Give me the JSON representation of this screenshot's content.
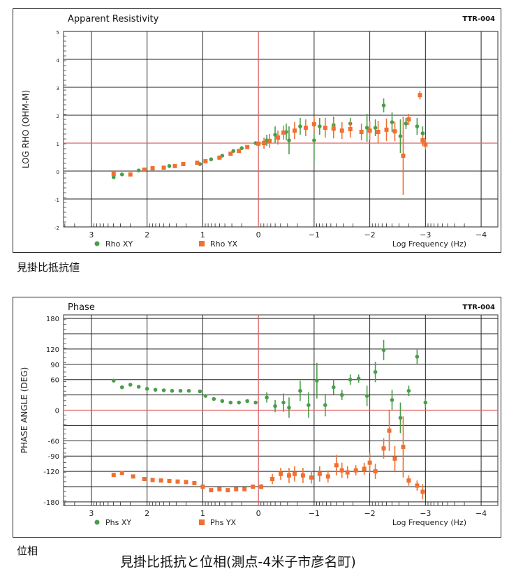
{
  "chart_data": [
    {
      "type": "scatter",
      "title": "Apparent Resistivity",
      "id_label": "TTR-004",
      "ylabel": "LOG RHO (OHM-M)",
      "xlabel": "Log Frequency (Hz)",
      "xlim": [
        3.5,
        -4.3
      ],
      "ylim": [
        -2,
        5
      ],
      "x_ticks": [
        3,
        2,
        1,
        0,
        -1,
        -2,
        -3,
        -4
      ],
      "x_tick_labels": [
        "3",
        "2",
        "1",
        "0",
        "−1",
        "−2",
        "−3",
        "−4"
      ],
      "y_ticks": [
        -2,
        -1,
        0,
        1,
        2,
        3,
        4,
        5
      ],
      "y_tick_labels": [
        "-2",
        "-1",
        "0",
        "1",
        "2",
        "3",
        "4",
        "5"
      ],
      "ref_lines": {
        "x": 0,
        "y": 1
      },
      "grid": true,
      "legend": "bottom-left",
      "colors": {
        "xy": "#4a9d4a",
        "yx": "#f07030",
        "ref": "#e06060"
      },
      "series": [
        {
          "name": "Rho XY",
          "marker": "circle",
          "points": [
            [
              2.6,
              -0.22,
              0.05
            ],
            [
              2.45,
              -0.12,
              0
            ],
            [
              2.15,
              0.02,
              0
            ],
            [
              1.6,
              0.18,
              0
            ],
            [
              1.05,
              0.25,
              0
            ],
            [
              0.85,
              0.42,
              0
            ],
            [
              0.65,
              0.55,
              0
            ],
            [
              0.45,
              0.72,
              0
            ],
            [
              0.3,
              0.82,
              0
            ],
            [
              0.05,
              1.0,
              0.05
            ],
            [
              -0.15,
              1.1,
              0.2
            ],
            [
              -0.3,
              1.3,
              0.3
            ],
            [
              -0.5,
              1.4,
              0.3
            ],
            [
              -0.55,
              1.1,
              0.5
            ],
            [
              -0.75,
              1.6,
              0.3
            ],
            [
              -1.0,
              1.1,
              0.8
            ],
            [
              -1.1,
              1.6,
              0.3
            ],
            [
              -1.35,
              1.65,
              0.3
            ],
            [
              -1.65,
              1.7,
              0.2
            ],
            [
              -1.95,
              1.55,
              0.5
            ],
            [
              -2.1,
              1.55,
              0.3
            ],
            [
              -2.25,
              2.35,
              0.25
            ],
            [
              -2.4,
              1.75,
              0.35
            ],
            [
              -2.55,
              1.25,
              0.6
            ],
            [
              -2.65,
              1.7,
              0.2
            ],
            [
              -2.85,
              1.6,
              0.3
            ],
            [
              -2.95,
              1.35,
              0.25
            ]
          ]
        },
        {
          "name": "Rho YX",
          "marker": "square",
          "points": [
            [
              2.6,
              -0.1,
              0.08
            ],
            [
              2.3,
              -0.12,
              0
            ],
            [
              2.05,
              0.05,
              0
            ],
            [
              1.9,
              0.1,
              0
            ],
            [
              1.7,
              0.12,
              0
            ],
            [
              1.5,
              0.18,
              0
            ],
            [
              1.35,
              0.25,
              0
            ],
            [
              1.1,
              0.3,
              0
            ],
            [
              0.95,
              0.35,
              0
            ],
            [
              0.7,
              0.48,
              0
            ],
            [
              0.5,
              0.62,
              0
            ],
            [
              0.35,
              0.72,
              0
            ],
            [
              0.2,
              0.86,
              0
            ],
            [
              0.0,
              0.98,
              0.05
            ],
            [
              -0.1,
              1.0,
              0.2
            ],
            [
              -0.2,
              1.08,
              0.25
            ],
            [
              -0.35,
              1.2,
              0.25
            ],
            [
              -0.45,
              1.38,
              0.25
            ],
            [
              -0.65,
              1.45,
              0.3
            ],
            [
              -0.85,
              1.55,
              0.3
            ],
            [
              -1.0,
              1.68,
              0.3
            ],
            [
              -1.2,
              1.55,
              0.35
            ],
            [
              -1.35,
              1.52,
              0.35
            ],
            [
              -1.5,
              1.45,
              0.3
            ],
            [
              -1.65,
              1.5,
              0.3
            ],
            [
              -1.85,
              1.4,
              0.3
            ],
            [
              -2.0,
              1.45,
              0.35
            ],
            [
              -2.15,
              1.4,
              0.4
            ],
            [
              -2.3,
              1.48,
              0.4
            ],
            [
              -2.45,
              1.42,
              0.35
            ],
            [
              -2.6,
              0.55,
              1.4
            ],
            [
              -2.7,
              1.85,
              0.2
            ],
            [
              -2.9,
              2.72,
              0.15
            ],
            [
              -2.95,
              1.1,
              0.2
            ],
            [
              -3.0,
              0.95,
              0.2
            ]
          ]
        }
      ]
    },
    {
      "type": "scatter",
      "title": "Phase",
      "id_label": "TTR-004",
      "ylabel": "PHASE ANGLE (DEG)",
      "xlabel": "Log Frequency (Hz)",
      "xlim": [
        3.5,
        -4.3
      ],
      "ylim": [
        -187,
        187
      ],
      "x_ticks": [
        3,
        2,
        1,
        0,
        -1,
        -2,
        -3,
        -4
      ],
      "x_tick_labels": [
        "3",
        "2",
        "1",
        "0",
        "−1",
        "−2",
        "−3",
        "−4"
      ],
      "y_ticks": [
        180,
        120,
        90,
        60,
        0,
        -60,
        -90,
        -120,
        -180
      ],
      "y_tick_labels": [
        "180",
        "120",
        "90",
        "60",
        "0",
        "-60",
        "-90",
        "-120",
        "-180"
      ],
      "grid_y": [
        180,
        150,
        120,
        90,
        60,
        30,
        0,
        -30,
        -60,
        -90,
        -120,
        -150,
        -180
      ],
      "ref_lines": {
        "x": 0,
        "y": 0
      },
      "grid": true,
      "legend": "bottom-left",
      "colors": {
        "xy": "#4a9d4a",
        "yx": "#f07030",
        "ref": "#e06060"
      },
      "series": [
        {
          "name": "Phs XY",
          "marker": "circle",
          "points": [
            [
              2.6,
              58,
              2
            ],
            [
              2.45,
              45,
              0
            ],
            [
              2.3,
              50,
              0
            ],
            [
              2.15,
              46,
              0
            ],
            [
              2.0,
              42,
              0
            ],
            [
              1.85,
              40,
              0
            ],
            [
              1.7,
              39,
              0
            ],
            [
              1.55,
              38,
              0
            ],
            [
              1.4,
              38,
              0
            ],
            [
              1.25,
              38,
              0
            ],
            [
              1.05,
              37,
              0
            ],
            [
              0.95,
              28,
              0
            ],
            [
              0.8,
              22,
              0
            ],
            [
              0.65,
              18,
              0
            ],
            [
              0.5,
              15,
              0
            ],
            [
              0.35,
              15,
              0
            ],
            [
              0.2,
              18,
              0
            ],
            [
              0.05,
              15,
              0
            ],
            [
              -0.15,
              25,
              10
            ],
            [
              -0.3,
              8,
              12
            ],
            [
              -0.45,
              15,
              18
            ],
            [
              -0.55,
              5,
              20
            ],
            [
              -0.75,
              38,
              20
            ],
            [
              -0.9,
              10,
              25
            ],
            [
              -1.05,
              58,
              35
            ],
            [
              -1.2,
              10,
              22
            ],
            [
              -1.35,
              45,
              15
            ],
            [
              -1.5,
              30,
              10
            ],
            [
              -1.65,
              60,
              10
            ],
            [
              -1.8,
              62,
              8
            ],
            [
              -1.95,
              28,
              20
            ],
            [
              -2.1,
              75,
              20
            ],
            [
              -2.25,
              118,
              20
            ],
            [
              -2.4,
              20,
              20
            ],
            [
              -2.55,
              -15,
              30
            ],
            [
              -2.7,
              38,
              10
            ],
            [
              -2.85,
              105,
              15
            ],
            [
              -3.0,
              15,
              10
            ]
          ]
        },
        {
          "name": "Phs YX",
          "marker": "square",
          "points": [
            [
              2.6,
              -127,
              3
            ],
            [
              2.45,
              -123,
              0
            ],
            [
              2.25,
              -130,
              0
            ],
            [
              2.05,
              -135,
              0
            ],
            [
              1.9,
              -137,
              0
            ],
            [
              1.75,
              -138,
              0
            ],
            [
              1.6,
              -139,
              0
            ],
            [
              1.45,
              -140,
              0
            ],
            [
              1.3,
              -141,
              0
            ],
            [
              1.15,
              -143,
              0
            ],
            [
              1.0,
              -150,
              0
            ],
            [
              0.85,
              -157,
              0
            ],
            [
              0.7,
              -155,
              0
            ],
            [
              0.55,
              -157,
              0
            ],
            [
              0.4,
              -155,
              0
            ],
            [
              0.25,
              -155,
              0
            ],
            [
              0.1,
              -150,
              0
            ],
            [
              -0.05,
              -150,
              5
            ],
            [
              -0.25,
              -135,
              10
            ],
            [
              -0.4,
              -125,
              12
            ],
            [
              -0.55,
              -128,
              15
            ],
            [
              -0.65,
              -125,
              15
            ],
            [
              -0.8,
              -128,
              15
            ],
            [
              -0.95,
              -132,
              12
            ],
            [
              -1.1,
              -125,
              15
            ],
            [
              -1.25,
              -130,
              12
            ],
            [
              -1.4,
              -108,
              20
            ],
            [
              -1.5,
              -118,
              15
            ],
            [
              -1.6,
              -122,
              12
            ],
            [
              -1.75,
              -118,
              10
            ],
            [
              -1.9,
              -115,
              12
            ],
            [
              -2.0,
              -103,
              20
            ],
            [
              -2.1,
              -120,
              15
            ],
            [
              -2.25,
              -75,
              20
            ],
            [
              -2.35,
              -40,
              40
            ],
            [
              -2.45,
              -95,
              25
            ],
            [
              -2.6,
              -72,
              60
            ],
            [
              -2.7,
              -138,
              10
            ],
            [
              -2.85,
              -148,
              10
            ],
            [
              -2.95,
              -160,
              15
            ]
          ]
        }
      ]
    }
  ],
  "captions": {
    "rho_caption": "見掛比抵抗値",
    "phase_caption": "位相",
    "main_caption": "見掛比抵抗と位相(測点-4米子市彦名町)"
  }
}
